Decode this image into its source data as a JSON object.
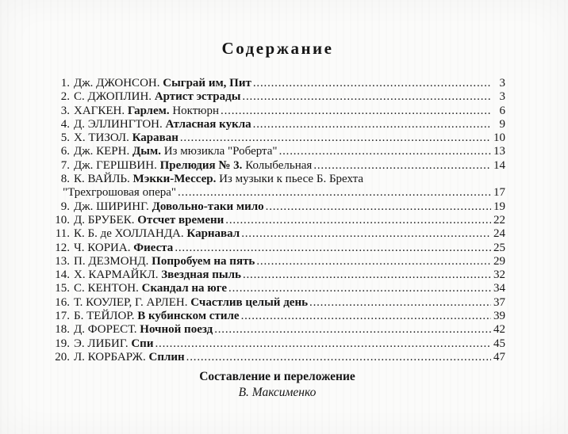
{
  "document": {
    "title": "Содержание",
    "entries": [
      {
        "num": "1.",
        "author": "Дж. ДЖОНСОН.",
        "title": "Сыграй им, Пит",
        "suffix": "",
        "page": "3"
      },
      {
        "num": "2.",
        "author": "С. ДЖОПЛИН.",
        "title": "Артист эстрады",
        "suffix": "",
        "page": "3"
      },
      {
        "num": "3.",
        "author": "ХАГКЕН.",
        "title": "Гарлем.",
        "suffix": "Ноктюрн",
        "page": "6"
      },
      {
        "num": "4.",
        "author": "Д. ЭЛЛИНГТОН.",
        "title": "Атласная кукла",
        "suffix": "",
        "page": "9"
      },
      {
        "num": "5.",
        "author": "Х. ТИЗОЛ.",
        "title": "Караван",
        "suffix": "",
        "page": "10"
      },
      {
        "num": "6.",
        "author": "Дж. КЕРН.",
        "title": "Дым.",
        "suffix": "Из мюзикла \"Роберта\"",
        "page": "13"
      },
      {
        "num": "7.",
        "author": "Дж. ГЕРШВИН.",
        "title": "Прелюдия № 3.",
        "suffix": "Колыбельная",
        "page": "14"
      },
      {
        "num": "8.",
        "author": "К. ВАЙЛЬ.",
        "title": "Мэкки-Мессер.",
        "suffix": "Из музыки к пьесе Б. Брехта",
        "continuation": "\"Трехгрошовая опера\"",
        "page": "17"
      },
      {
        "num": "9.",
        "author": "Дж. ШИРИНГ.",
        "title": "Довольно-таки мило",
        "suffix": "",
        "page": "19"
      },
      {
        "num": "10.",
        "author": "Д. БРУБЕК.",
        "title": "Отсчет времени",
        "suffix": "",
        "page": "22"
      },
      {
        "num": "11.",
        "author": "К. Б. де ХОЛЛАНДА.",
        "title": "Карнавал",
        "suffix": "",
        "page": "24"
      },
      {
        "num": "12.",
        "author": "Ч. КОРИА.",
        "title": "Фиеста",
        "suffix": "",
        "page": "25"
      },
      {
        "num": "13.",
        "author": "П. ДЕЗМОНД.",
        "title": "Попробуем на пять",
        "suffix": "",
        "page": "29"
      },
      {
        "num": "14.",
        "author": "Х. КАРМАЙКЛ.",
        "title": "Звездная пыль",
        "suffix": "",
        "page": "32"
      },
      {
        "num": "15.",
        "author": "С. КЕНТОН.",
        "title": "Скандал на юге",
        "suffix": "",
        "page": "34"
      },
      {
        "num": "16.",
        "author": "Т. КОУЛЕР, Г. АРЛЕН.",
        "title": "Счастлив целый день",
        "suffix": "",
        "page": "37"
      },
      {
        "num": "17.",
        "author": "Б. ТЕЙЛОР.",
        "title": "В кубинском стиле",
        "suffix": "",
        "page": "39"
      },
      {
        "num": "18.",
        "author": "Д. ФОРЕСТ.",
        "title": "Ночной поезд",
        "suffix": "",
        "page": "42"
      },
      {
        "num": "19.",
        "author": "Э. ЛИБИГ.",
        "title": "Спи",
        "suffix": "",
        "page": "45"
      },
      {
        "num": "20.",
        "author": "Л. КОРБАРЖ.",
        "title": "Сплин",
        "suffix": "",
        "page": "47"
      }
    ],
    "footer": {
      "line1": "Составление и переложение",
      "line2": "В. Максименко"
    }
  }
}
